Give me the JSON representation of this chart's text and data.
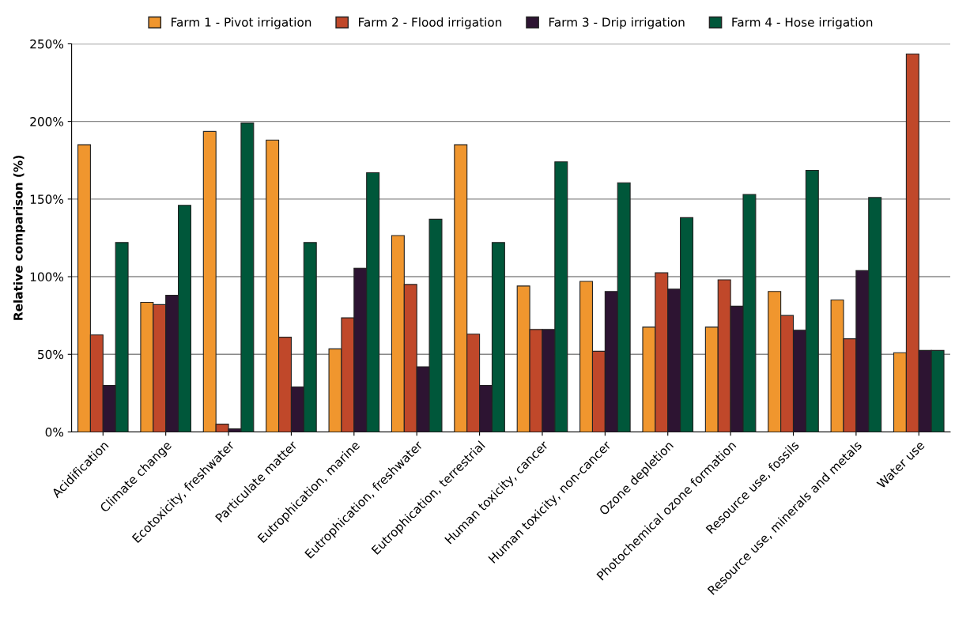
{
  "chart_data": {
    "type": "bar",
    "ylabel": "Relative comparison (%)",
    "categories": [
      "Acidification",
      "Climate change",
      "Ecotoxicity, freshwater",
      "Particulate matter",
      "Eutrophication, marine",
      "Eutrophication, freshwater",
      "Eutrophication, terrestrial",
      "Human toxicity, cancer",
      "Human toxicity, non-cancer",
      "Ozone depletion",
      "Photochemical ozone formation",
      "Resource use, fossils",
      "Resource use, minerals and metals",
      "Water use"
    ],
    "series": [
      {
        "name": "Farm 1 - Pivot irrigation",
        "color": "#f0962e",
        "values": [
          185,
          83.5,
          193.5,
          188,
          53.5,
          126.5,
          185,
          94,
          97,
          67.5,
          67.5,
          90.5,
          85,
          51
        ]
      },
      {
        "name": "Farm 2 - Flood irrigation",
        "color": "#c0482a",
        "values": [
          62.5,
          82,
          5,
          61,
          73.5,
          95,
          63,
          66,
          52,
          102.5,
          98,
          75,
          60,
          243.5
        ]
      },
      {
        "name": "Farm 3 - Drip irrigation",
        "color": "#2d1432",
        "values": [
          30,
          88,
          2,
          29,
          105.5,
          42,
          30,
          66,
          90.5,
          92,
          81,
          65.5,
          104,
          52.5
        ]
      },
      {
        "name": "Farm 4 - Hose irrigation",
        "color": "#00573a",
        "values": [
          122,
          146,
          199,
          122,
          167,
          137,
          122,
          174,
          160.5,
          138,
          153,
          168.5,
          151,
          52.5
        ]
      }
    ],
    "ylim": [
      0,
      250
    ],
    "yticks": [
      {
        "value": 0,
        "label": "0%"
      },
      {
        "value": 50,
        "label": "50%"
      },
      {
        "value": 100,
        "label": "100%"
      },
      {
        "value": 150,
        "label": "150%"
      },
      {
        "value": 200,
        "label": "200%"
      },
      {
        "value": 250,
        "label": "250%"
      }
    ],
    "grid": "y",
    "legend": "top"
  }
}
